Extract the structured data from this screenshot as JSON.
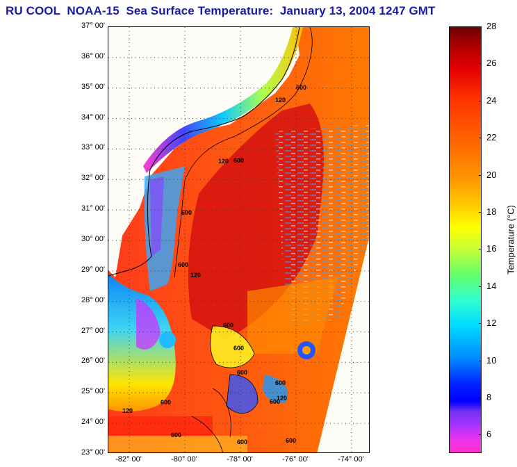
{
  "title": "RU COOL  NOAA-15  Sea Surface Temperature:  January 13, 2004 1247 GMT",
  "map": {
    "lat_labels": [
      "37° 00'",
      "36° 00'",
      "35° 00'",
      "34° 00'",
      "33° 00'",
      "32° 00'",
      "31° 00'",
      "30° 00'",
      "29° 00'",
      "28° 00'",
      "27° 00'",
      "26° 00'",
      "25° 00'",
      "24° 00'",
      "23° 00'"
    ],
    "lon_labels": [
      "-82° 00'",
      "-80° 00'",
      "-78° 00'",
      "-76° 00'",
      "-74° 00'"
    ],
    "contour_labels": [
      "600",
      "120",
      "600",
      "120",
      "600",
      "600",
      "120",
      "600",
      "600",
      "600",
      "600",
      "600",
      "120",
      "600",
      "120",
      "600",
      "600",
      "600"
    ]
  },
  "colorbar": {
    "title": "Temperature (°C)",
    "ticks": [
      "28",
      "26",
      "24",
      "22",
      "20",
      "18",
      "16",
      "14",
      "12",
      "10",
      "8",
      "6"
    ],
    "range": [
      5,
      28
    ]
  },
  "colors": {
    "title": "#1a1aa8",
    "land": "#fdfcf6"
  }
}
